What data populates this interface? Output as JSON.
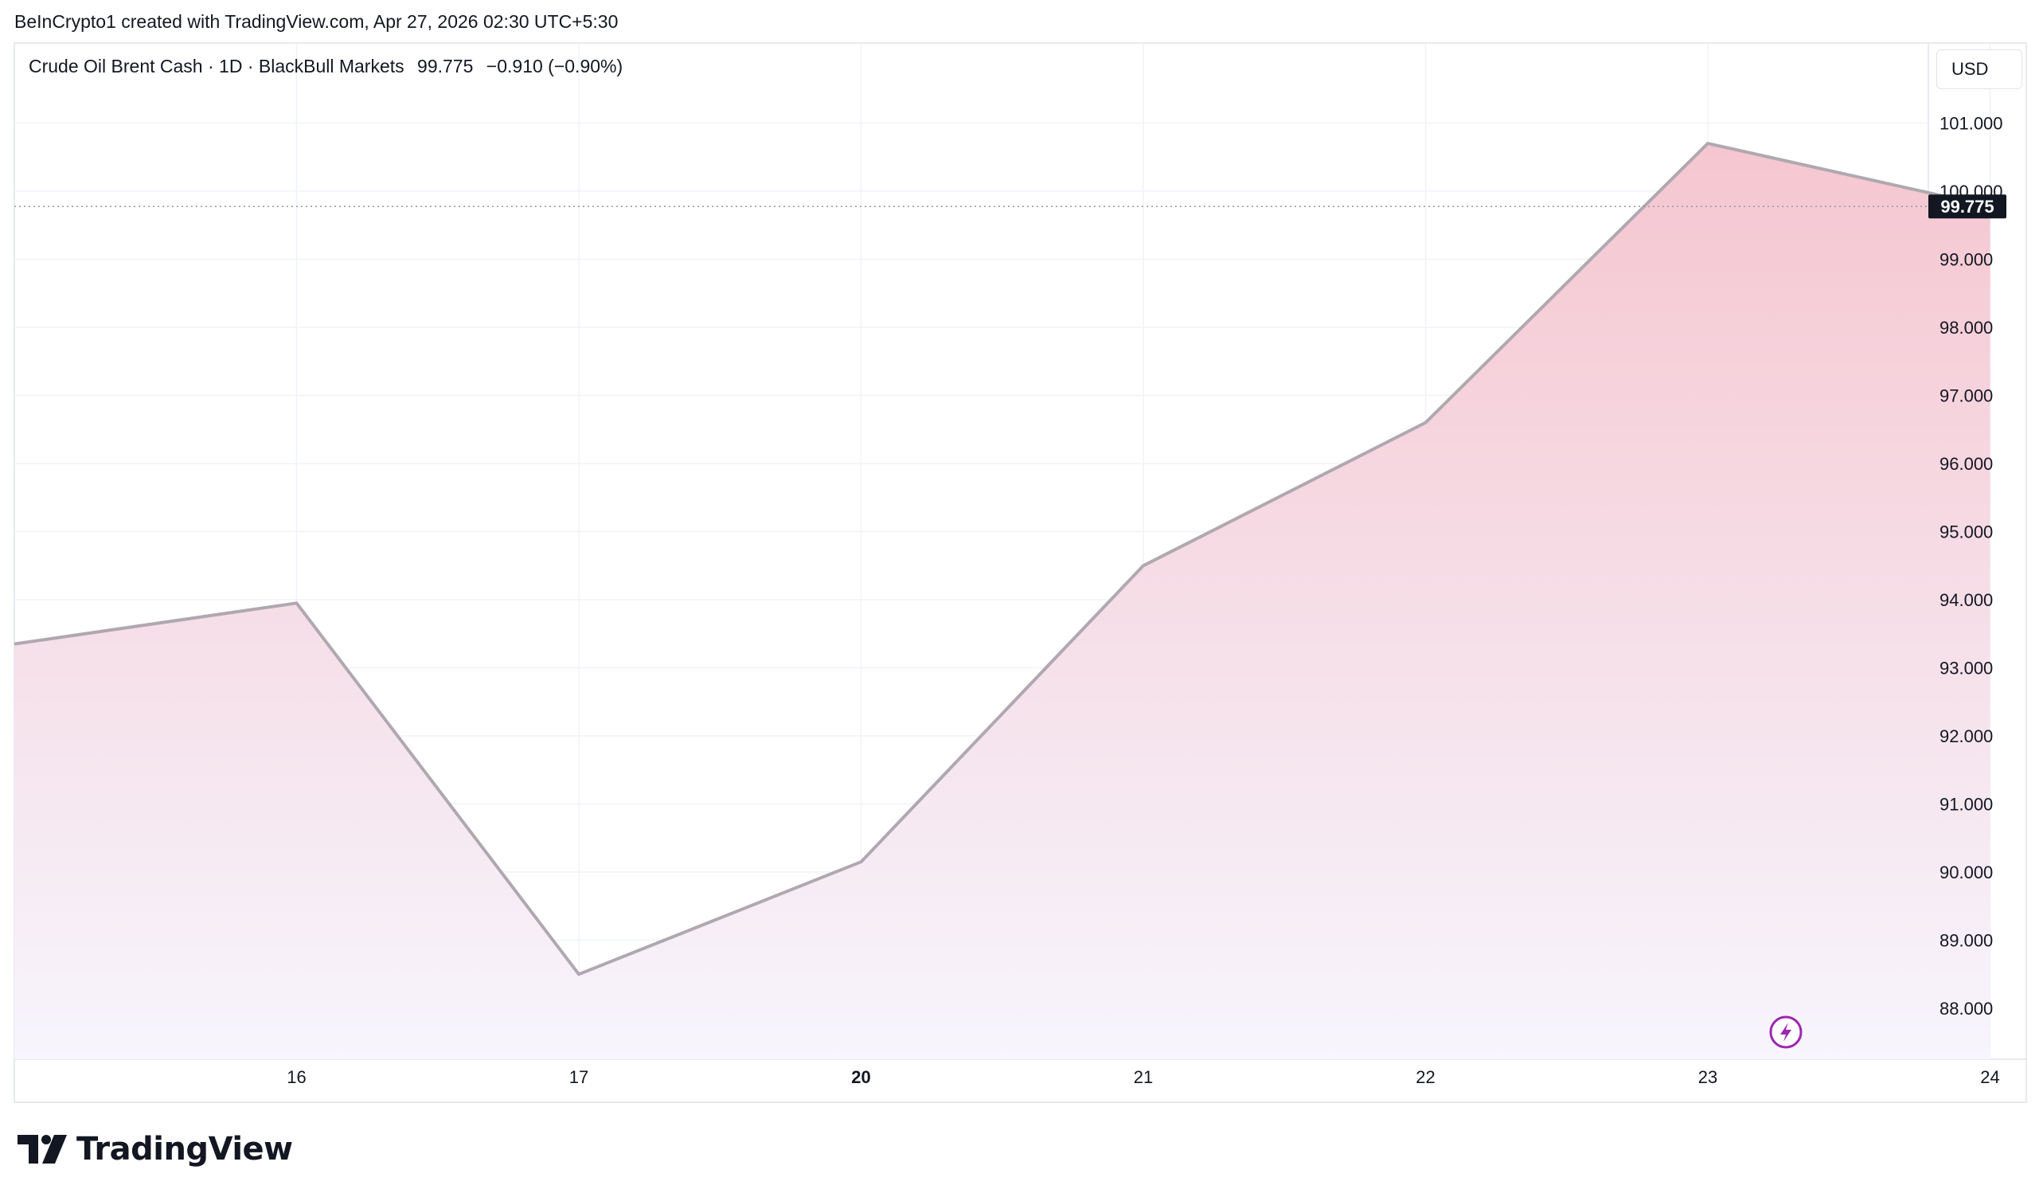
{
  "header": {
    "caption": "BeInCrypto1 created with TradingView.com, Apr 27, 2026 02:30 UTC+5:30"
  },
  "legend": {
    "symbol": "Crude Oil Brent Cash · 1D · BlackBull Markets",
    "last": "99.775",
    "change": "−0.910 (−0.90%)"
  },
  "currency": "USD",
  "brand": {
    "name": "TradingView"
  },
  "colors": {
    "line": "#b0a8b0",
    "fill_top": "#f5c6d0",
    "fill_bottom": "#f7f5fd",
    "grid": "#f0f3fa",
    "price_tag": "#131722",
    "lightning": "#9c27b0"
  },
  "chart_data": {
    "type": "area",
    "x": [
      "15",
      "16",
      "17",
      "20",
      "21",
      "22",
      "23",
      "24"
    ],
    "values": [
      93.35,
      93.95,
      88.5,
      90.15,
      94.5,
      96.6,
      100.7,
      99.775
    ],
    "x_tick_labels": [
      "16",
      "17",
      "20",
      "21",
      "22",
      "23",
      "24"
    ],
    "x_tick_bold": [
      "20"
    ],
    "y_ticks": [
      88,
      89,
      90,
      91,
      92,
      93,
      94,
      95,
      96,
      97,
      98,
      99,
      100,
      101
    ],
    "y_tick_labels": [
      "88.000",
      "89.000",
      "90.000",
      "91.000",
      "92.000",
      "93.000",
      "94.000",
      "95.000",
      "96.000",
      "97.000",
      "98.000",
      "99.000",
      "100.000",
      "101.000"
    ],
    "ylim": [
      87.5,
      102
    ],
    "last_value_label": "99.775",
    "grid": true
  }
}
